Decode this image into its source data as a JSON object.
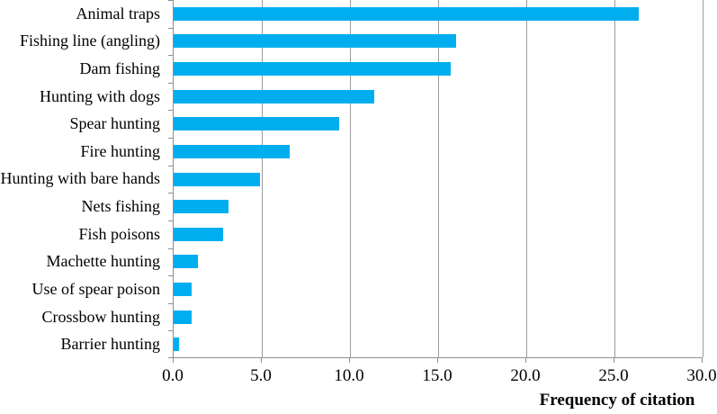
{
  "chart_data": {
    "type": "bar",
    "orientation": "horizontal",
    "title": "",
    "xlabel": "Frequency of citation",
    "ylabel": "",
    "xlim": [
      0,
      30
    ],
    "xticks": [
      0,
      5,
      10,
      15,
      20,
      25,
      30
    ],
    "xtick_labels": [
      "0.0",
      "5.0",
      "10.0",
      "15.0",
      "20.0",
      "25.0",
      "30.0"
    ],
    "grid": true,
    "legend": false,
    "categories": [
      "Animal traps",
      "Fishing line (angling)",
      "Dam fishing",
      "Hunting with dogs",
      "Spear hunting",
      "Fire hunting",
      "Hunting with bare hands",
      "Nets fishing",
      "Fish poisons",
      "Machette hunting",
      "Use of spear poison",
      "Crossbow hunting",
      "Barrier hunting"
    ],
    "values": [
      26.4,
      16.0,
      15.7,
      11.4,
      9.4,
      6.6,
      4.9,
      3.1,
      2.8,
      1.4,
      1.0,
      1.0,
      0.3
    ],
    "colors": {
      "bar": "#00aeef",
      "gridline": "#9c9c9c",
      "axis": "#8f8f8f",
      "text": "#000000",
      "background": "#ffffff"
    }
  }
}
